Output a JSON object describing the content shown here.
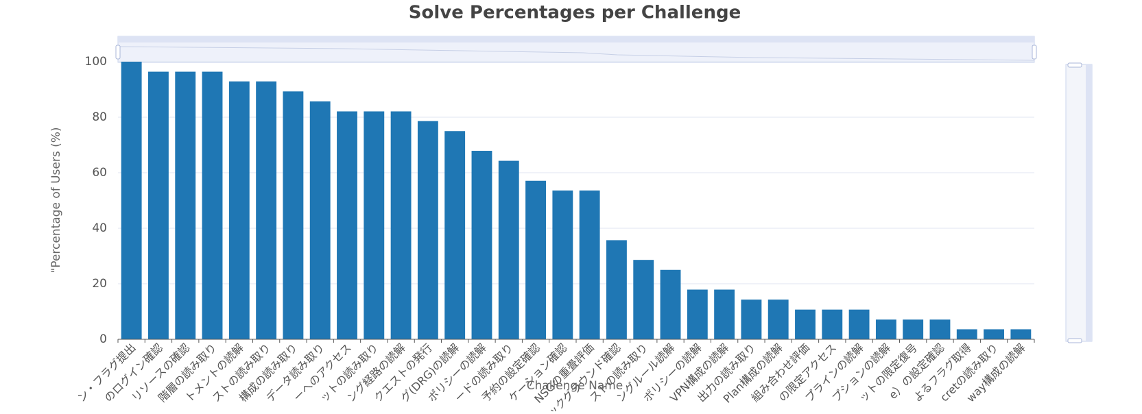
{
  "chart_data": {
    "type": "bar",
    "title": "Solve Percentages per Challenge",
    "x_label": "Challenge Name",
    "y_label": "\"Percentage of Users (%)",
    "categories": [
      "ン・フラグ提出",
      "のログイン確認",
      "リソースの確認",
      "階層の読み取り",
      "トメントの読解",
      "ストの読み取り",
      "構成の読み取り",
      "データ読み取り",
      "ーへのアクセス",
      "ットの読み取り",
      "ング経路の読解",
      "クエストの発行",
      "グ(DRG)の読解",
      "ポリシーの読解",
      "ードの読み取り",
      "予約の設定確認",
      "ケーション確認",
      "NSGの重畳評価",
      "ックグラウンド確認",
      "ストの読み取り",
      "ングルール読解",
      "ポリシーの読解",
      "VPN構成の読解",
      "出力の読み取り",
      "Plan構成の読解",
      "組み合わせ評価",
      "の限定アクセス",
      "プラインの読解",
      "プションの読解",
      "ットの限定復号",
      "e）の設定確認",
      "よるフラグ取得",
      "cretの読み取り",
      "way構成の読解"
    ],
    "values": [
      100,
      96.4,
      96.4,
      96.4,
      92.9,
      92.9,
      89.3,
      85.7,
      82.1,
      82.1,
      82.1,
      78.6,
      75,
      67.9,
      64.3,
      57.1,
      53.6,
      53.6,
      35.7,
      28.6,
      25,
      17.9,
      17.9,
      14.3,
      14.3,
      10.7,
      10.7,
      10.7,
      7.1,
      7.1,
      7.1,
      3.6,
      3.6,
      3.6
    ],
    "color": "#1f77b4",
    "ylim": [
      0,
      100
    ],
    "yticks": [
      0,
      20,
      40,
      60,
      80,
      100
    ],
    "grid": true
  }
}
